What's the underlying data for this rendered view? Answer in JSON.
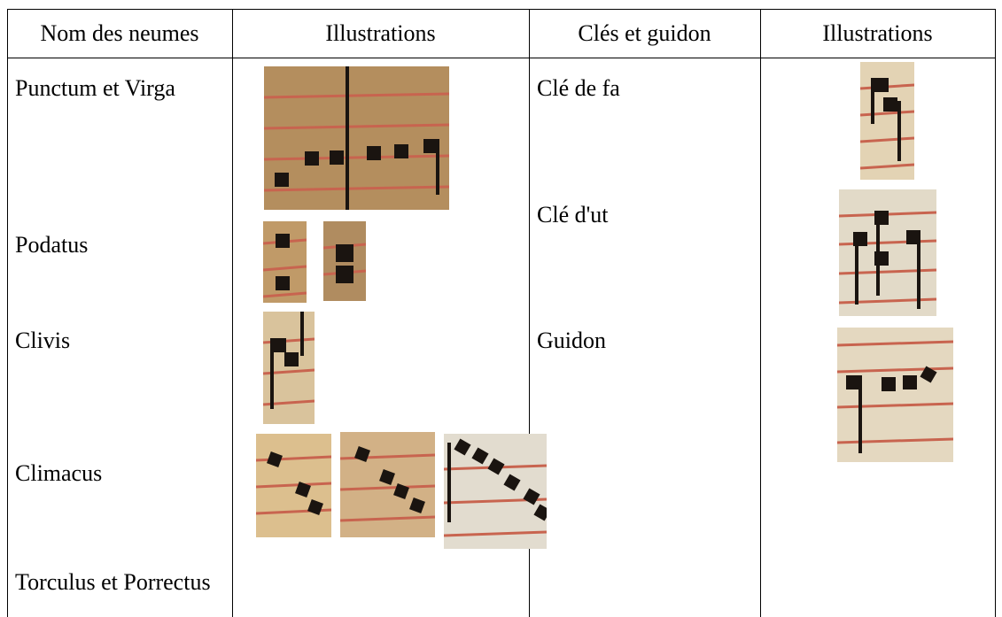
{
  "table": {
    "header": [
      "Nom des neumes",
      "Illustrations",
      "Clés et guidon",
      "Illustrations"
    ],
    "neumes": [
      "Punctum et Virga",
      "Podatus",
      "Clivis",
      "Climacus",
      "Torculus et Porrectus"
    ],
    "cles": [
      "Clé de fa",
      "Clé d'ut",
      "Guidon"
    ]
  }
}
